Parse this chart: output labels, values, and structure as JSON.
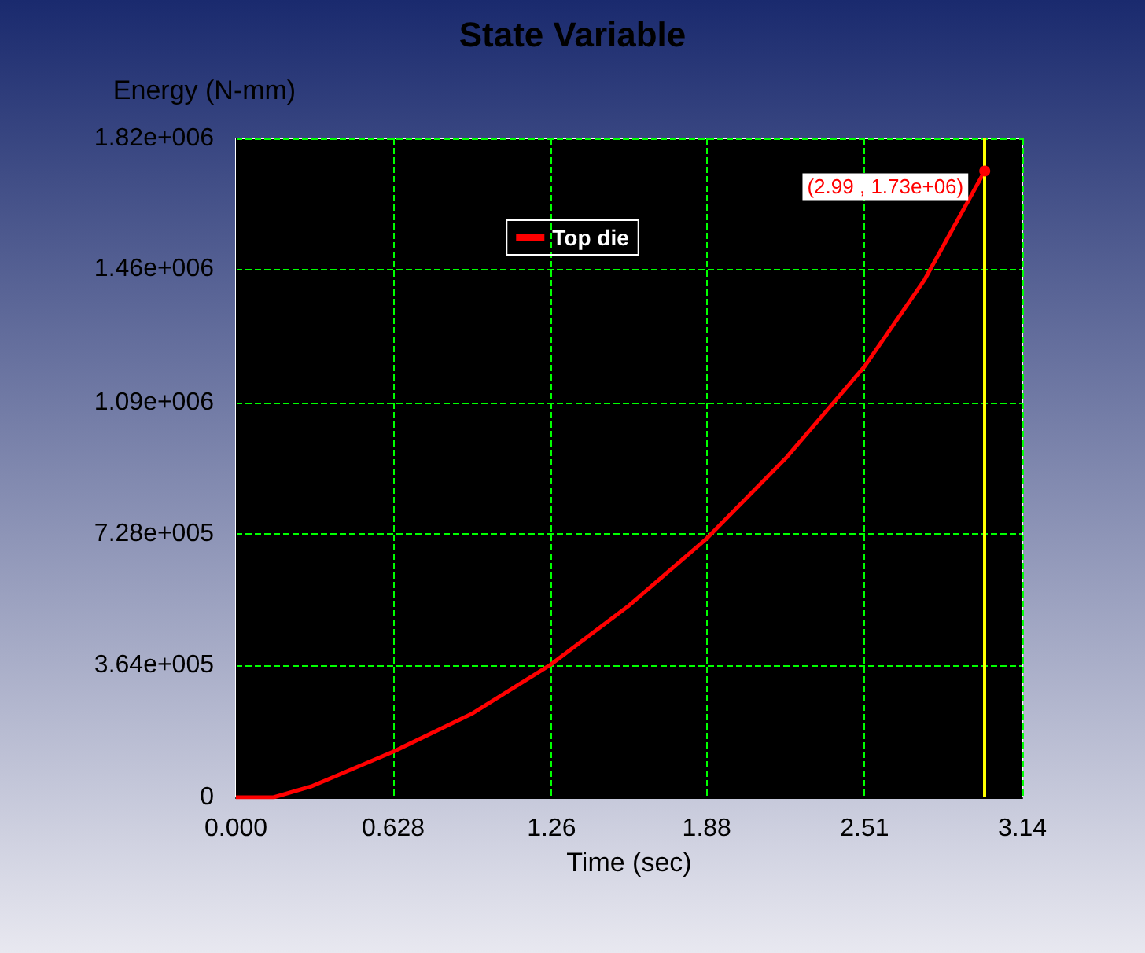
{
  "chart_data": {
    "type": "line",
    "title": "State Variable",
    "xlabel": "Time (sec)",
    "ylabel": "Energy (N-mm)",
    "x": [
      0,
      0.15,
      0.3,
      0.628,
      0.94,
      1.26,
      1.57,
      1.88,
      2.2,
      2.51,
      2.75,
      2.99
    ],
    "series": [
      {
        "name": "Top die",
        "color": "#ff0000",
        "values": [
          0,
          0,
          30000,
          126000,
          230000,
          368000,
          530000,
          715000,
          940000,
          1190000,
          1430000,
          1730000
        ]
      }
    ],
    "xlim": [
      0,
      3.14
    ],
    "xticks": [
      {
        "value": 0,
        "label": "0.000"
      },
      0.628,
      1.26,
      1.88,
      2.51,
      3.14
    ],
    "ylim": [
      0,
      1820000
    ],
    "yticks": [
      0,
      {
        "value": 364000,
        "label": "3.64e+005"
      },
      {
        "value": 728000,
        "label": "7.28e+005"
      },
      {
        "value": 1090000,
        "label": "1.09e+006"
      },
      {
        "value": 1460000,
        "label": "1.46e+006"
      },
      {
        "value": 1820000,
        "label": "1.82e+006"
      }
    ],
    "grid": true,
    "legend": "top",
    "marker": "none",
    "line_style": "solid",
    "ref_lines": [
      {
        "axis": "x",
        "value": 2.99,
        "color": "#ffff00"
      }
    ],
    "annotations": [
      {
        "text": "(2.99 , 1.73e+06)",
        "x": 2.99,
        "y": 1730000
      }
    ]
  }
}
